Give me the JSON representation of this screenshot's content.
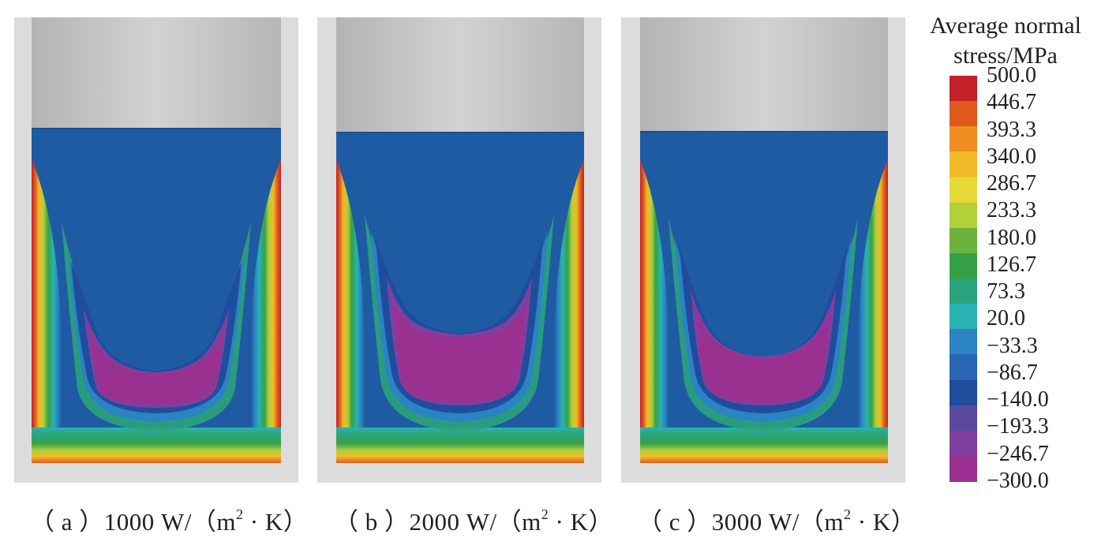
{
  "panels": [
    {
      "id": "a",
      "caption": {
        "prefix": "（ a ）",
        "text": "1000 W/（m",
        "sup": "2",
        "suffix": " · K）"
      }
    },
    {
      "id": "b",
      "caption": {
        "prefix": "（ b ）",
        "text": "2000 W/（m",
        "sup": "2",
        "suffix": " · K）"
      }
    },
    {
      "id": "c",
      "caption": {
        "prefix": "（ c ）",
        "text": "3000 W/（m",
        "sup": "2",
        "suffix": " · K）"
      }
    }
  ],
  "legend": {
    "title_line1": "Average normal",
    "title_line2": "stress/MPa",
    "levels": [
      "500.0",
      "446.7",
      "393.3",
      "340.0",
      "286.7",
      "233.3",
      "180.0",
      "126.7",
      "73.3",
      "20.0",
      "−33.3",
      "−86.7",
      "−140.0",
      "−193.3",
      "−246.7",
      "−300.0"
    ],
    "colors": [
      "#c4202a",
      "#e05a1e",
      "#ef8d22",
      "#f2b928",
      "#e6d836",
      "#b3cf3a",
      "#6cb33e",
      "#36a046",
      "#2aa37c",
      "#29b3b1",
      "#2b82c4",
      "#2a65b3",
      "#1f4d9d",
      "#5a4aa0",
      "#7f3f9e",
      "#9a3191"
    ]
  },
  "colors": {
    "plate": "#cfcfcf",
    "background_blue": "#1f5ba3",
    "deep_magenta": "#8c2a8a"
  }
}
